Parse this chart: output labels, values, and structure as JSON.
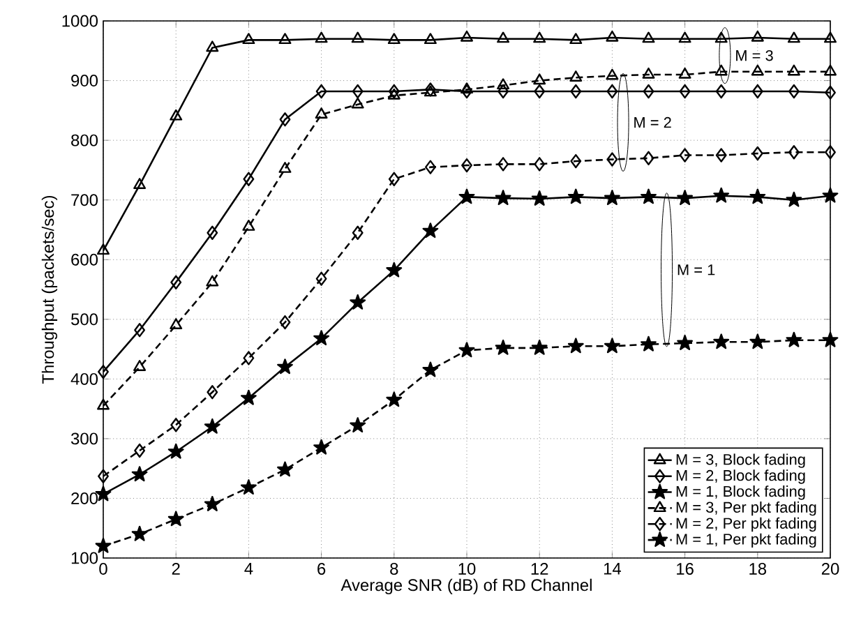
{
  "chart_data": {
    "type": "line",
    "xlabel": "Average SNR (dB) of RD Channel",
    "ylabel": "Throughput (packets/sec)",
    "x": [
      0,
      1,
      2,
      3,
      4,
      5,
      6,
      7,
      8,
      9,
      10,
      11,
      12,
      13,
      14,
      15,
      16,
      17,
      18,
      19,
      20
    ],
    "xlim": [
      0,
      20
    ],
    "xticks": [
      0,
      2,
      4,
      6,
      8,
      10,
      12,
      14,
      16,
      18,
      20
    ],
    "ylim": [
      100,
      1000
    ],
    "yticks": [
      100,
      200,
      300,
      400,
      500,
      600,
      700,
      800,
      900,
      1000
    ],
    "grid": true,
    "legend": "bottom right",
    "series": [
      {
        "name": "M = 3, Block fading",
        "color": "#000000",
        "marker": "triangle",
        "line_style": "solid",
        "values": [
          615,
          725,
          840,
          955,
          968,
          968,
          970,
          970,
          968,
          968,
          972,
          970,
          970,
          968,
          972,
          970,
          970,
          970,
          972,
          970,
          970
        ]
      },
      {
        "name": "M = 2, Block fading",
        "color": "#000000",
        "marker": "diamond",
        "line_style": "solid",
        "values": [
          412,
          482,
          562,
          645,
          735,
          835,
          882,
          882,
          882,
          885,
          882,
          882,
          882,
          882,
          882,
          882,
          882,
          882,
          882,
          882,
          880
        ]
      },
      {
        "name": "M = 1, Block fading",
        "color": "#000000",
        "marker": "star",
        "line_style": "solid",
        "values": [
          207,
          240,
          278,
          320,
          368,
          420,
          468,
          528,
          582,
          648,
          705,
          703,
          702,
          705,
          703,
          705,
          703,
          707,
          705,
          700,
          707
        ]
      },
      {
        "name": "M = 3, Per pkt fading",
        "color": "#000000",
        "marker": "triangle",
        "line_style": "dashed",
        "values": [
          355,
          420,
          490,
          562,
          655,
          752,
          843,
          860,
          875,
          880,
          885,
          892,
          900,
          905,
          908,
          910,
          910,
          915,
          915,
          915,
          915
        ]
      },
      {
        "name": "M = 2, Per pkt fading",
        "color": "#000000",
        "marker": "diamond",
        "line_style": "dashed",
        "values": [
          237,
          280,
          323,
          378,
          435,
          495,
          568,
          645,
          735,
          755,
          758,
          760,
          760,
          765,
          768,
          770,
          775,
          775,
          778,
          780,
          780
        ]
      },
      {
        "name": "M = 1, Per pkt fading",
        "color": "#000000",
        "marker": "star",
        "line_style": "dashed",
        "values": [
          120,
          140,
          165,
          190,
          218,
          248,
          285,
          322,
          365,
          415,
          448,
          452,
          452,
          455,
          455,
          458,
          460,
          462,
          462,
          465,
          465
        ]
      }
    ],
    "annotations": [
      "M = 3",
      "M = 2",
      "M = 1"
    ]
  }
}
